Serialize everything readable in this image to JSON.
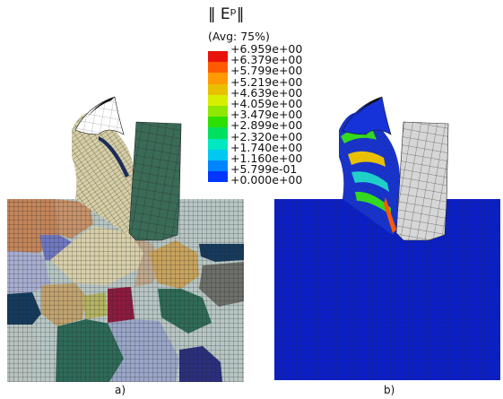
{
  "legend": {
    "title": "‖ Eᵖ‖",
    "subtitle": "(Avg: 75%)",
    "labels": [
      "+6.959e+00",
      "+6.379e+00",
      "+5.799e+00",
      "+5.219e+00",
      "+4.639e+00",
      "+4.059e+00",
      "+3.479e+00",
      "+2.899e+00",
      "+2.320e+00",
      "+1.740e+00",
      "+1.160e+00",
      "+5.799e-01",
      "+0.000e+00"
    ],
    "colors": [
      "#e8130a",
      "#ff5a00",
      "#ff9a00",
      "#e8c000",
      "#d8ee00",
      "#8ee800",
      "#2ee000",
      "#00e060",
      "#00e8c0",
      "#00c8f0",
      "#0084ff",
      "#0036ff"
    ]
  },
  "panels": {
    "a_caption": "a)",
    "b_caption": "b)"
  },
  "colors": {
    "workpiece_blue": "#0b1fc8",
    "chip_beige": "#d9d2a6",
    "tool_green": "#3a6b57",
    "tool_grey": "#d8d8d8",
    "grain_palette": [
      "#c08a5b",
      "#7f84c1",
      "#b9c5c3",
      "#6a8a75",
      "#163a5a",
      "#8c1a40",
      "#c9b27a",
      "#2e6a56"
    ]
  }
}
